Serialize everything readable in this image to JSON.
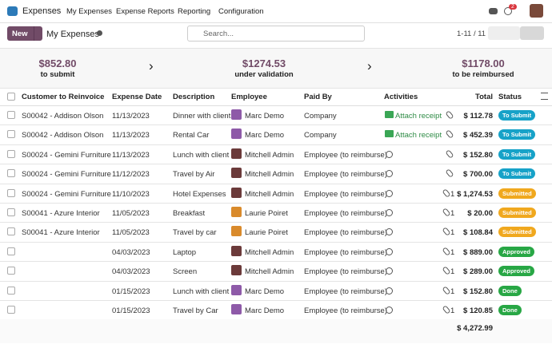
{
  "nav": {
    "app": "Expenses",
    "menu": [
      "My Expenses",
      "Expense Reports",
      "Reporting",
      "Configuration"
    ],
    "badge": "2"
  },
  "control": {
    "new": "New",
    "title": "My Expenses",
    "search": "Search...",
    "pager": "1-11 / 11"
  },
  "summary": [
    {
      "amount": "$852.80",
      "label": "to submit"
    },
    {
      "amount": "$1274.53",
      "label": "under validation"
    },
    {
      "amount": "$1178.00",
      "label": "to be reimbursed"
    }
  ],
  "table": {
    "headers": [
      "Customer to Reinvoice",
      "Expense Date",
      "Description",
      "Employee",
      "Paid By",
      "Activities",
      "Total",
      "Status"
    ],
    "rows": [
      {
        "customer": "S00042 - Addison Olson",
        "date": "11/13/2023",
        "description": "Dinner with client",
        "employee": "Marc Demo",
        "avatar_color": "#8e5aa8",
        "paid_by": "Company",
        "activity": "Attach receipt",
        "attachments": null,
        "total": "$ 112.78",
        "status": "To Submit",
        "status_color": "#17a2c8"
      },
      {
        "customer": "S00042 - Addison Olson",
        "date": "11/13/2023",
        "description": "Rental Car",
        "employee": "Marc Demo",
        "avatar_color": "#8e5aa8",
        "paid_by": "Company",
        "activity": "Attach receipt",
        "attachments": null,
        "total": "$ 452.39",
        "status": "To Submit",
        "status_color": "#17a2c8"
      },
      {
        "customer": "S00024 - Gemini Furniture",
        "date": "11/13/2023",
        "description": "Lunch with client",
        "employee": "Mitchell Admin",
        "avatar_color": "#6b3a3a",
        "paid_by": "Employee (to reimburse)",
        "activity": null,
        "attachments": null,
        "total": "$ 152.80",
        "status": "To Submit",
        "status_color": "#17a2c8"
      },
      {
        "customer": "S00024 - Gemini Furniture",
        "date": "11/12/2023",
        "description": "Travel by Air",
        "employee": "Mitchell Admin",
        "avatar_color": "#6b3a3a",
        "paid_by": "Employee (to reimburse)",
        "activity": null,
        "attachments": null,
        "total": "$ 700.00",
        "status": "To Submit",
        "status_color": "#17a2c8"
      },
      {
        "customer": "S00024 - Gemini Furniture",
        "date": "11/10/2023",
        "description": "Hotel Expenses",
        "employee": "Mitchell Admin",
        "avatar_color": "#6b3a3a",
        "paid_by": "Employee (to reimburse)",
        "activity": null,
        "attachments": "1",
        "total": "$ 1,274.53",
        "status": "Submitted",
        "status_color": "#f0a81e"
      },
      {
        "customer": "S00041 - Azure Interior",
        "date": "11/05/2023",
        "description": "Breakfast",
        "employee": "Laurie Poiret",
        "avatar_color": "#d98a2b",
        "paid_by": "Employee (to reimburse)",
        "activity": null,
        "attachments": "1",
        "total": "$ 20.00",
        "status": "Submitted",
        "status_color": "#f0a81e"
      },
      {
        "customer": "S00041 - Azure Interior",
        "date": "11/05/2023",
        "description": "Travel by car",
        "employee": "Laurie Poiret",
        "avatar_color": "#d98a2b",
        "paid_by": "Employee (to reimburse)",
        "activity": null,
        "attachments": "1",
        "total": "$ 108.84",
        "status": "Submitted",
        "status_color": "#f0a81e"
      },
      {
        "customer": null,
        "date": "04/03/2023",
        "description": "Laptop",
        "employee": "Mitchell Admin",
        "avatar_color": "#6b3a3a",
        "paid_by": "Employee (to reimburse)",
        "activity": null,
        "attachments": "1",
        "total": "$ 889.00",
        "status": "Approved",
        "status_color": "#28a745"
      },
      {
        "customer": null,
        "date": "04/03/2023",
        "description": "Screen",
        "employee": "Mitchell Admin",
        "avatar_color": "#6b3a3a",
        "paid_by": "Employee (to reimburse)",
        "activity": null,
        "attachments": "1",
        "total": "$ 289.00",
        "status": "Approved",
        "status_color": "#28a745"
      },
      {
        "customer": null,
        "date": "01/15/2023",
        "description": "Lunch with client",
        "employee": "Marc Demo",
        "avatar_color": "#8e5aa8",
        "paid_by": "Employee (to reimburse)",
        "activity": null,
        "attachments": "1",
        "total": "$ 152.80",
        "status": "Done",
        "status_color": "#28a745"
      },
      {
        "customer": null,
        "date": "01/15/2023",
        "description": "Travel by Car",
        "employee": "Marc Demo",
        "avatar_color": "#8e5aa8",
        "paid_by": "Employee (to reimburse)",
        "activity": null,
        "attachments": "1",
        "total": "$ 120.85",
        "status": "Done",
        "status_color": "#28a745"
      }
    ],
    "total": "$ 4,272.99"
  }
}
